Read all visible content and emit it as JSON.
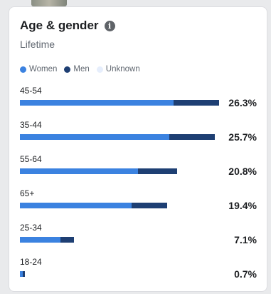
{
  "card": {
    "title": "Age & gender",
    "info_icon": "info-icon",
    "subtitle": "Lifetime"
  },
  "legend": [
    {
      "label": "Women",
      "color": "#3b82e0"
    },
    {
      "label": "Men",
      "color": "#1e3f73"
    },
    {
      "label": "Unknown",
      "color": "#e6eefc"
    }
  ],
  "colors": {
    "women": "#3b82e0",
    "men": "#1e3f73",
    "unknown": "#e6eefc",
    "accent": "#3b82e0"
  },
  "chart_data": {
    "type": "bar",
    "orientation": "horizontal",
    "stacked": true,
    "categories": [
      "45-54",
      "35-44",
      "55-64",
      "65+",
      "25-34",
      "18-24"
    ],
    "totals_label": [
      "26.3%",
      "25.7%",
      "20.8%",
      "19.4%",
      "7.1%",
      "0.7%"
    ],
    "totals": [
      26.3,
      25.7,
      20.8,
      19.4,
      7.1,
      0.7
    ],
    "series": [
      {
        "name": "Women",
        "values": [
          20.3,
          19.7,
          15.6,
          14.7,
          5.4,
          0.4
        ]
      },
      {
        "name": "Men",
        "values": [
          6.0,
          6.0,
          5.2,
          4.7,
          1.7,
          0.3
        ]
      },
      {
        "name": "Unknown",
        "values": [
          0,
          0,
          0,
          0,
          0,
          0
        ]
      }
    ],
    "xlim": [
      0,
      26.3
    ],
    "legend": "top-left",
    "grid": false
  }
}
